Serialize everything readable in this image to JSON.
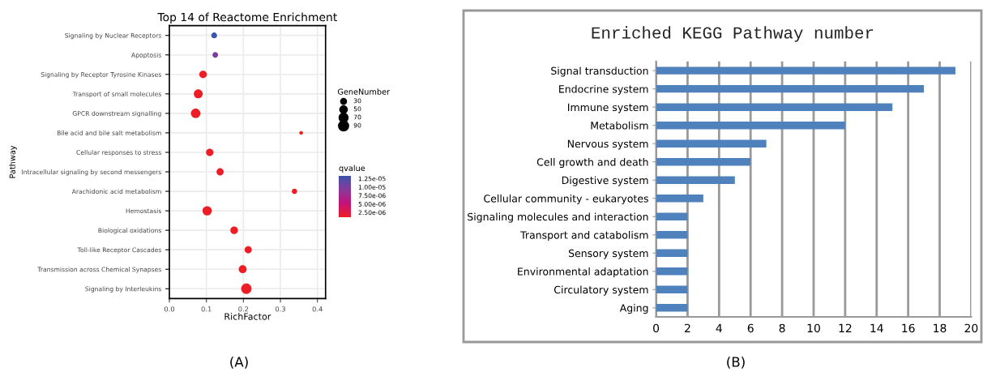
{
  "chart_data": [
    {
      "type": "bubble",
      "title": "Top 14 of Reactome Enrichment",
      "xlabel": "RichFactor",
      "ylabel": "Pathway",
      "legend_title": "GeneNumber",
      "clabel": "qvalue",
      "categories": [
        "Signaling by Nuclear Receptors",
        "Apoptosis",
        "Signaling by Receptor Tyrosine Kinases",
        "Transport of small molecules",
        "GPCR downstream signalling",
        "Bile acid and bile salt metabolism",
        "Cellular responses to stress",
        "Intracellular signaling by second messengers",
        "Arachidonic acid metabolism",
        "Hemostasis",
        "Biological oxidations",
        "Toll-like Receptor Cascades",
        "Transmission across Chemical Synapses",
        "Signaling by Interleukins"
      ],
      "orientation": "horizontal",
      "values": [
        0.121,
        0.124,
        0.091,
        0.078,
        0.071,
        0.356,
        0.109,
        0.137,
        0.338,
        0.102,
        0.175,
        0.213,
        0.198,
        0.208
      ],
      "sizes": [
        30,
        28,
        50,
        70,
        80,
        12,
        48,
        45,
        25,
        75,
        50,
        45,
        55,
        95
      ],
      "size_legend": [
        30,
        50,
        70,
        90
      ],
      "cvalues": [
        1.33e-05,
        1e-05,
        1.1e-06,
        1.1e-06,
        1.1e-06,
        1.1e-06,
        1.1e-06,
        1.1e-06,
        1.1e-06,
        1.1e-06,
        1.1e-06,
        1.1e-06,
        1.1e-06,
        1.1e-06
      ],
      "clim": [
        1.1e-06,
        1.33e-05
      ],
      "cticks": [
        {
          "value": 2.5e-06,
          "label": "2.50e-06"
        },
        {
          "value": 5e-06,
          "label": "5.00e-06"
        },
        {
          "value": 7.5e-06,
          "label": "7.50e-06"
        },
        {
          "value": 1e-05,
          "label": "1.00e-05"
        },
        {
          "value": 1.25e-05,
          "label": "1.25e-05"
        }
      ],
      "xlim": [
        0,
        0.422
      ],
      "xticks": [
        {
          "value": 0,
          "label": "0.0"
        },
        0.1,
        0.2,
        0.3,
        0.4
      ],
      "grid": true,
      "annotations": [
        "(A)"
      ]
    },
    {
      "type": "bar",
      "orientation": "horizontal",
      "title": "Enriched KEGG Pathway number",
      "categories": [
        "Signal transduction",
        "Endocrine system",
        "Immune system",
        "Metabolism",
        "Nervous system",
        "Cell growth and death",
        "Digestive system",
        "Cellular community - eukaryotes",
        "Signaling molecules and interaction",
        "Transport and catabolism",
        "Sensory system",
        "Environmental adaptation",
        "Circulatory system",
        "Aging"
      ],
      "values": [
        19,
        17,
        15,
        12,
        7,
        6,
        5,
        3,
        2,
        2,
        2,
        2,
        2,
        2
      ],
      "color": "#4f81bd",
      "xlim": [
        0,
        20
      ],
      "xticks": [
        0,
        2,
        4,
        6,
        8,
        10,
        12,
        14,
        16,
        18,
        20
      ],
      "grid": "x",
      "annotations": [
        "(B)"
      ]
    }
  ]
}
